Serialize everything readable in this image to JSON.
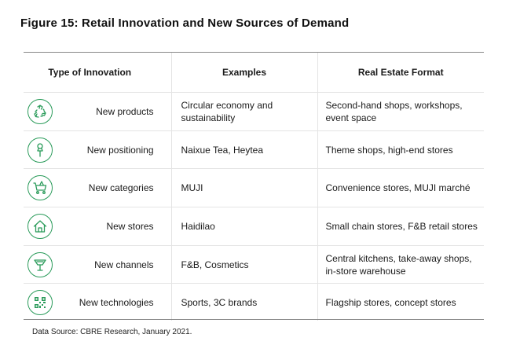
{
  "title": "Figure 15: Retail Innovation and New Sources of Demand",
  "headers": {
    "type": "Type of Innovation",
    "examples": "Examples",
    "format": "Real Estate Format"
  },
  "rows": [
    {
      "icon": "recycle-icon",
      "type": "New products",
      "examples": "Circular economy and sustainability",
      "format": "Second-hand shops, workshops, event space"
    },
    {
      "icon": "pushpin-icon",
      "type": "New positioning",
      "examples": "Naixue Tea, Heytea",
      "format": "Theme shops,  high-end stores"
    },
    {
      "icon": "shopping-cart-icon",
      "type": "New categories",
      "examples": "MUJI",
      "format": "Convenience stores, MUJI marché"
    },
    {
      "icon": "house-icon",
      "type": "New stores",
      "examples": "Haidilao",
      "format": "Small chain stores, F&B retail stores"
    },
    {
      "icon": "cocktail-glass-icon",
      "type": "New channels",
      "examples": "F&B, Cosmetics",
      "format": "Central kitchens,  take-away shops, in-store warehouse"
    },
    {
      "icon": "qr-code-icon",
      "type": "New technologies",
      "examples": "Sports, 3C brands",
      "format": "Flagship stores, concept stores"
    }
  ],
  "source": "Data Source: CBRE Research, January 2021.",
  "colors": {
    "accent": "#2a9b5a",
    "rule": "#888888",
    "grid": "#e4e4e4"
  }
}
